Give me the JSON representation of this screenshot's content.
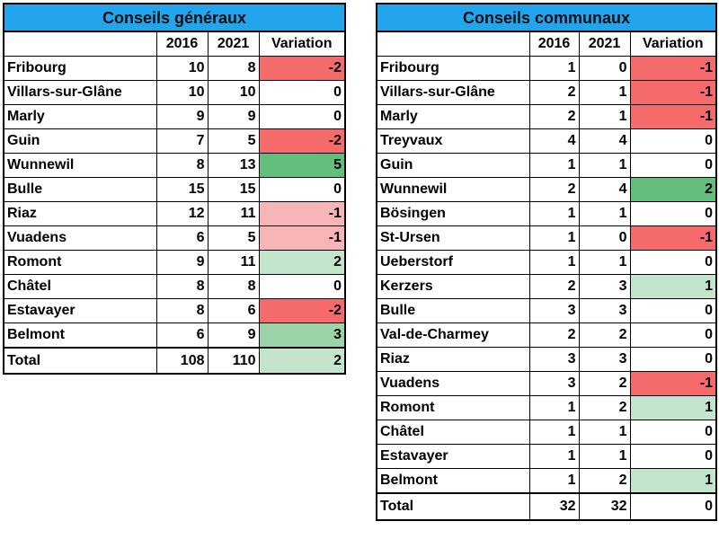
{
  "colors": {
    "header_bg": "#23a5ee",
    "var_m2": "#f56b6b",
    "var_m1_strong": "#f56b6b",
    "var_m1_light": "#f8b5b8",
    "var_p5": "#63bd7b",
    "var_p2_strong": "#63bd7b",
    "var_p3": "#9bd4a8",
    "var_p2_light": "#c2e5cb",
    "var_p1_light": "#c2e5cb",
    "neutral": "#ffffff"
  },
  "generaux": {
    "title": "Conseils généraux",
    "col_2016": "2016",
    "col_2021": "2021",
    "col_var": "Variation",
    "rows": [
      {
        "name": "Fribourg",
        "y2016": "10",
        "y2021": "8",
        "var": "-2",
        "color": "#f56b6b"
      },
      {
        "name": "Villars-sur-Glâne",
        "y2016": "10",
        "y2021": "10",
        "var": "0",
        "color": "#ffffff"
      },
      {
        "name": "Marly",
        "y2016": "9",
        "y2021": "9",
        "var": "0",
        "color": "#ffffff"
      },
      {
        "name": "Guin",
        "y2016": "7",
        "y2021": "5",
        "var": "-2",
        "color": "#f56b6b"
      },
      {
        "name": "Wunnewil",
        "y2016": "8",
        "y2021": "13",
        "var": "5",
        "color": "#63bd7b"
      },
      {
        "name": "Bulle",
        "y2016": "15",
        "y2021": "15",
        "var": "0",
        "color": "#ffffff"
      },
      {
        "name": "Riaz",
        "y2016": "12",
        "y2021": "11",
        "var": "-1",
        "color": "#f8b5b8"
      },
      {
        "name": "Vuadens",
        "y2016": "6",
        "y2021": "5",
        "var": "-1",
        "color": "#f8b5b8"
      },
      {
        "name": "Romont",
        "y2016": "9",
        "y2021": "11",
        "var": "2",
        "color": "#c2e5cb"
      },
      {
        "name": "Châtel",
        "y2016": "8",
        "y2021": "8",
        "var": "0",
        "color": "#ffffff"
      },
      {
        "name": "Estavayer",
        "y2016": "8",
        "y2021": "6",
        "var": "-2",
        "color": "#f56b6b"
      },
      {
        "name": "Belmont",
        "y2016": "6",
        "y2021": "9",
        "var": "3",
        "color": "#9bd4a8"
      }
    ],
    "total": {
      "name": "Total",
      "y2016": "108",
      "y2021": "110",
      "var": "2",
      "color": "#c2e5cb"
    }
  },
  "communaux": {
    "title": "Conseils communaux",
    "col_2016": "2016",
    "col_2021": "2021",
    "col_var": "Variation",
    "rows": [
      {
        "name": "Fribourg",
        "y2016": "1",
        "y2021": "0",
        "var": "-1",
        "color": "#f56b6b"
      },
      {
        "name": "Villars-sur-Glâne",
        "y2016": "2",
        "y2021": "1",
        "var": "-1",
        "color": "#f56b6b"
      },
      {
        "name": "Marly",
        "y2016": "2",
        "y2021": "1",
        "var": "-1",
        "color": "#f56b6b"
      },
      {
        "name": "Treyvaux",
        "y2016": "4",
        "y2021": "4",
        "var": "0",
        "color": "#ffffff"
      },
      {
        "name": "Guin",
        "y2016": "1",
        "y2021": "1",
        "var": "0",
        "color": "#ffffff"
      },
      {
        "name": "Wunnewil",
        "y2016": "2",
        "y2021": "4",
        "var": "2",
        "color": "#63bd7b"
      },
      {
        "name": "Bösingen",
        "y2016": "1",
        "y2021": "1",
        "var": "0",
        "color": "#ffffff"
      },
      {
        "name": "St-Ursen",
        "y2016": "1",
        "y2021": "0",
        "var": "-1",
        "color": "#f56b6b"
      },
      {
        "name": "Ueberstorf",
        "y2016": "1",
        "y2021": "1",
        "var": "0",
        "color": "#ffffff"
      },
      {
        "name": "Kerzers",
        "y2016": "2",
        "y2021": "3",
        "var": "1",
        "color": "#c2e5cb"
      },
      {
        "name": "Bulle",
        "y2016": "3",
        "y2021": "3",
        "var": "0",
        "color": "#ffffff"
      },
      {
        "name": "Val-de-Charmey",
        "y2016": "2",
        "y2021": "2",
        "var": "0",
        "color": "#ffffff"
      },
      {
        "name": "Riaz",
        "y2016": "3",
        "y2021": "3",
        "var": "0",
        "color": "#ffffff"
      },
      {
        "name": "Vuadens",
        "y2016": "3",
        "y2021": "2",
        "var": "-1",
        "color": "#f56b6b"
      },
      {
        "name": "Romont",
        "y2016": "1",
        "y2021": "2",
        "var": "1",
        "color": "#c2e5cb"
      },
      {
        "name": "Châtel",
        "y2016": "1",
        "y2021": "1",
        "var": "0",
        "color": "#ffffff"
      },
      {
        "name": "Estavayer",
        "y2016": "1",
        "y2021": "1",
        "var": "0",
        "color": "#ffffff"
      },
      {
        "name": "Belmont",
        "y2016": "1",
        "y2021": "2",
        "var": "1",
        "color": "#c2e5cb"
      }
    ],
    "total": {
      "name": "Total",
      "y2016": "32",
      "y2021": "32",
      "var": "0",
      "color": "#ffffff"
    }
  }
}
